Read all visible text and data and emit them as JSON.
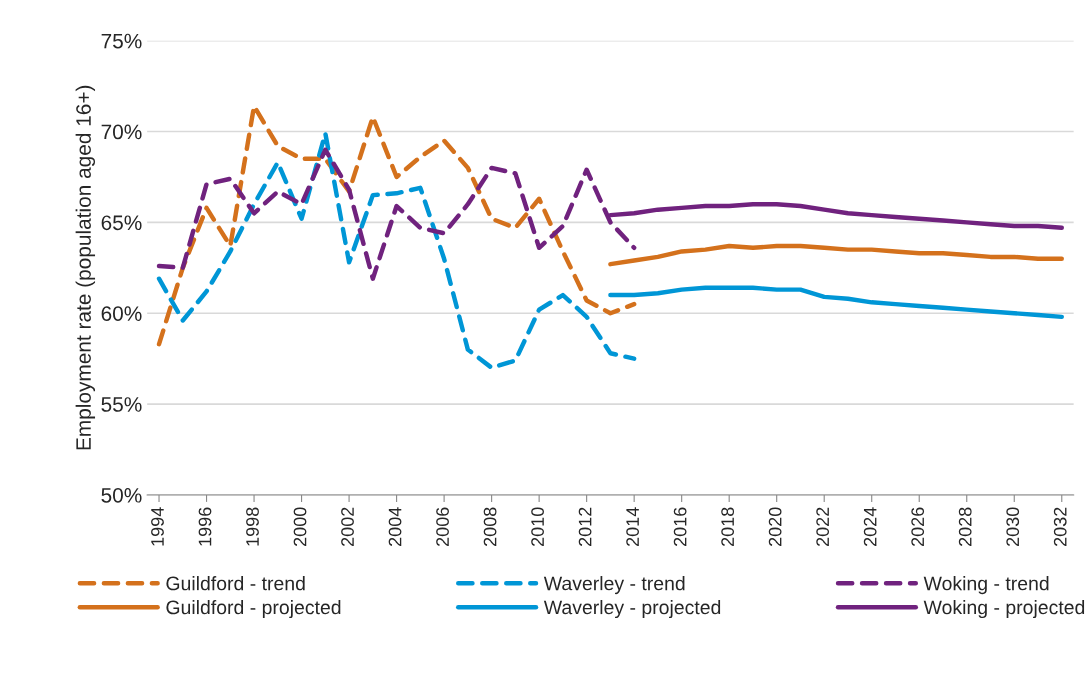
{
  "chart_data": {
    "type": "line",
    "ylabel": "Employment rate (population aged 16+)",
    "xlim": [
      1993.5,
      2032.5
    ],
    "xticks": [
      1994,
      1996,
      1998,
      2000,
      2002,
      2004,
      2006,
      2008,
      2010,
      2012,
      2014,
      2016,
      2018,
      2020,
      2022,
      2024,
      2026,
      2028,
      2030,
      2032
    ],
    "ylim": [
      50,
      75
    ],
    "yticks": [
      {
        "value": 50,
        "label": "50%"
      },
      {
        "value": 55,
        "label": "55%"
      },
      {
        "value": 60,
        "label": "60%"
      },
      {
        "value": 65,
        "label": "65%"
      },
      {
        "value": 70,
        "label": "70%"
      },
      {
        "value": 75,
        "label": "75%"
      }
    ],
    "grid": "y",
    "legend": "bottom",
    "series": [
      {
        "name": "Guildford - trend",
        "color": "#d4711c",
        "line_style": "dashed",
        "x": [
          1994,
          1995,
          1996,
          1997,
          1998,
          1999,
          2000,
          2001,
          2002,
          2003,
          2004,
          2005,
          2006,
          2007,
          2008,
          2009,
          2010,
          2011,
          2012,
          2013,
          2014
        ],
        "values": [
          58.3,
          62.5,
          65.8,
          63.7,
          71.4,
          69.2,
          68.5,
          68.5,
          66.7,
          70.8,
          67.5,
          68.6,
          69.5,
          68.0,
          65.2,
          64.7,
          66.3,
          63.4,
          60.7,
          60.0,
          60.5
        ]
      },
      {
        "name": "Waverley - trend",
        "color": "#0096d6",
        "line_style": "dashed",
        "x": [
          1994,
          1995,
          1996,
          1997,
          1998,
          1999,
          2000,
          2001,
          2002,
          2003,
          2004,
          2005,
          2006,
          2007,
          2008,
          2009,
          2010,
          2011,
          2012,
          2013,
          2014
        ],
        "values": [
          61.9,
          59.6,
          61.2,
          63.4,
          66.0,
          68.3,
          65.2,
          69.9,
          62.8,
          66.5,
          66.6,
          66.9,
          63.0,
          58.0,
          57.0,
          57.4,
          60.2,
          61.0,
          59.8,
          57.8,
          57.5
        ]
      },
      {
        "name": "Woking - trend",
        "color": "#70227e",
        "line_style": "dashed",
        "x": [
          1994,
          1995,
          1996,
          1997,
          1998,
          1999,
          2000,
          2001,
          2002,
          2003,
          2004,
          2005,
          2006,
          2007,
          2008,
          2009,
          2010,
          2011,
          2012,
          2013,
          2014
        ],
        "values": [
          62.6,
          62.5,
          67.1,
          67.4,
          65.5,
          66.7,
          66.0,
          69.0,
          66.8,
          61.9,
          65.9,
          64.7,
          64.4,
          66.0,
          68.0,
          67.7,
          63.6,
          64.8,
          67.9,
          65.0,
          63.6
        ]
      },
      {
        "name": "Guildford - projected",
        "color": "#d4711c",
        "line_style": "solid",
        "x": [
          2013,
          2014,
          2015,
          2016,
          2017,
          2018,
          2019,
          2020,
          2021,
          2022,
          2023,
          2024,
          2025,
          2026,
          2027,
          2028,
          2029,
          2030,
          2031,
          2032
        ],
        "values": [
          62.7,
          62.9,
          63.1,
          63.4,
          63.5,
          63.7,
          63.6,
          63.7,
          63.7,
          63.6,
          63.5,
          63.5,
          63.4,
          63.3,
          63.3,
          63.2,
          63.1,
          63.1,
          63.0,
          63.0
        ]
      },
      {
        "name": "Waverley - projected",
        "color": "#0096d6",
        "line_style": "solid",
        "x": [
          2013,
          2014,
          2015,
          2016,
          2017,
          2018,
          2019,
          2020,
          2021,
          2022,
          2023,
          2024,
          2025,
          2026,
          2027,
          2028,
          2029,
          2030,
          2031,
          2032
        ],
        "values": [
          61.0,
          61.0,
          61.1,
          61.3,
          61.4,
          61.4,
          61.4,
          61.3,
          61.3,
          60.9,
          60.8,
          60.6,
          60.5,
          60.4,
          60.3,
          60.2,
          60.1,
          60.0,
          59.9,
          59.8
        ]
      },
      {
        "name": "Woking - projected",
        "color": "#70227e",
        "line_style": "solid",
        "x": [
          2013,
          2014,
          2015,
          2016,
          2017,
          2018,
          2019,
          2020,
          2021,
          2022,
          2023,
          2024,
          2025,
          2026,
          2027,
          2028,
          2029,
          2030,
          2031,
          2032
        ],
        "values": [
          65.4,
          65.5,
          65.7,
          65.8,
          65.9,
          65.9,
          66.0,
          66.0,
          65.9,
          65.7,
          65.5,
          65.4,
          65.3,
          65.2,
          65.1,
          65.0,
          64.9,
          64.8,
          64.8,
          64.7
        ]
      }
    ]
  }
}
